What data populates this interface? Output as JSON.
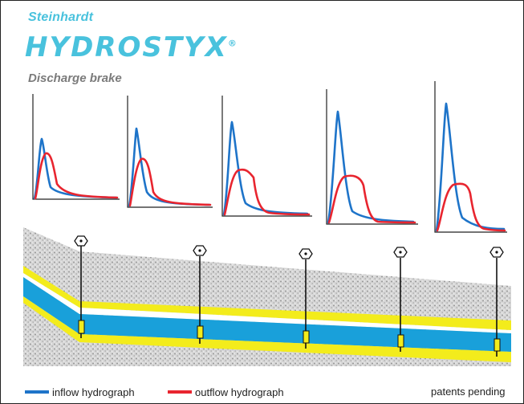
{
  "brand": {
    "maker": "Steinhardt",
    "product": "HYDROSTYX",
    "registered": "®",
    "subtitle": "Discharge brake"
  },
  "colors": {
    "inflow": "#1e74c9",
    "outflow": "#e8252f",
    "water": "#19a0da",
    "edge": "#f3ec1c",
    "gravel": "#d6d6d6",
    "brand": "#49c2dd"
  },
  "legend": {
    "inflow": "inflow hydrograph",
    "outflow": "outflow hydrograph",
    "patent": "patents pending"
  },
  "brake_icon": "brake-icon"
}
